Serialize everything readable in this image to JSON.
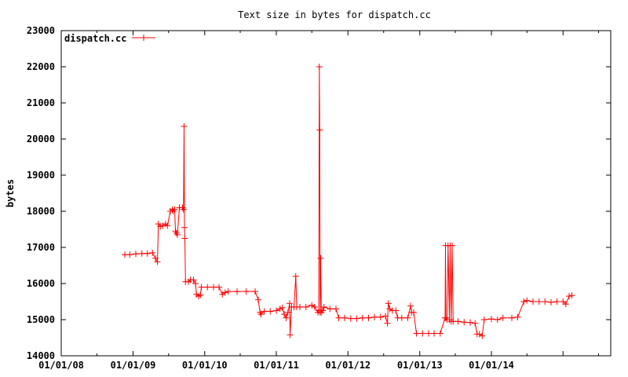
{
  "chart_data": {
    "type": "line",
    "title": "Text size in bytes for dispatch.cc",
    "xlabel": "",
    "ylabel": "bytes",
    "legend": {
      "position": "top-left",
      "entries": [
        "dispatch.cc"
      ]
    },
    "grid": false,
    "xlim": [
      "2008-01-01",
      "2015-09-01"
    ],
    "ylim": [
      14000,
      23000
    ],
    "x_ticks": [
      "01/01/08",
      "01/01/09",
      "01/01/10",
      "01/01/11",
      "01/01/12",
      "01/01/13",
      "01/01/14"
    ],
    "y_ticks": [
      14000,
      15000,
      16000,
      17000,
      18000,
      19000,
      20000,
      21000,
      22000,
      23000
    ],
    "series": [
      {
        "name": "dispatch.cc",
        "color": "#ff0000",
        "marker": "plus",
        "points": [
          [
            "2008-11-20",
            16800
          ],
          [
            "2008-12-15",
            16800
          ],
          [
            "2009-01-15",
            16820
          ],
          [
            "2009-02-15",
            16830
          ],
          [
            "2009-03-15",
            16830
          ],
          [
            "2009-04-10",
            16850
          ],
          [
            "2009-04-25",
            16700
          ],
          [
            "2009-05-05",
            16600
          ],
          [
            "2009-05-10",
            17650
          ],
          [
            "2009-05-20",
            17580
          ],
          [
            "2009-06-01",
            17600
          ],
          [
            "2009-06-15",
            17650
          ],
          [
            "2009-06-25",
            17600
          ],
          [
            "2009-07-10",
            18000
          ],
          [
            "2009-07-20",
            18050
          ],
          [
            "2009-07-25",
            18000
          ],
          [
            "2009-08-01",
            18050
          ],
          [
            "2009-08-05",
            17450
          ],
          [
            "2009-08-10",
            17400
          ],
          [
            "2009-08-15",
            17350
          ],
          [
            "2009-08-25",
            18100
          ],
          [
            "2009-09-10",
            18100
          ],
          [
            "2009-09-15",
            18050
          ],
          [
            "2009-09-18",
            20350
          ],
          [
            "2009-09-20",
            17550
          ],
          [
            "2009-09-22",
            17250
          ],
          [
            "2009-09-25",
            16050
          ],
          [
            "2009-10-10",
            16050
          ],
          [
            "2009-10-20",
            16100
          ],
          [
            "2009-11-05",
            16100
          ],
          [
            "2009-11-15",
            16000
          ],
          [
            "2009-11-20",
            15700
          ],
          [
            "2009-12-01",
            15650
          ],
          [
            "2009-12-10",
            15680
          ],
          [
            "2009-12-15",
            15900
          ],
          [
            "2010-01-15",
            15900
          ],
          [
            "2010-02-15",
            15900
          ],
          [
            "2010-03-15",
            15900
          ],
          [
            "2010-04-01",
            15700
          ],
          [
            "2010-04-15",
            15750
          ],
          [
            "2010-05-01",
            15780
          ],
          [
            "2010-06-15",
            15780
          ],
          [
            "2010-08-01",
            15780
          ],
          [
            "2010-09-15",
            15780
          ],
          [
            "2010-10-01",
            15550
          ],
          [
            "2010-10-10",
            15200
          ],
          [
            "2010-10-15",
            15150
          ],
          [
            "2010-11-01",
            15230
          ],
          [
            "2010-12-01",
            15230
          ],
          [
            "2011-01-01",
            15250
          ],
          [
            "2011-01-20",
            15300
          ],
          [
            "2011-02-01",
            15330
          ],
          [
            "2011-02-10",
            15150
          ],
          [
            "2011-02-20",
            15050
          ],
          [
            "2011-03-01",
            15200
          ],
          [
            "2011-03-10",
            15450
          ],
          [
            "2011-03-12",
            14580
          ],
          [
            "2011-03-20",
            15350
          ],
          [
            "2011-04-01",
            15350
          ],
          [
            "2011-04-10",
            16200
          ],
          [
            "2011-04-15",
            15350
          ],
          [
            "2011-05-01",
            15350
          ],
          [
            "2011-06-01",
            15350
          ],
          [
            "2011-07-01",
            15400
          ],
          [
            "2011-07-15",
            15350
          ],
          [
            "2011-08-01",
            15200
          ],
          [
            "2011-08-05",
            15250
          ],
          [
            "2011-08-08",
            22000
          ],
          [
            "2011-08-10",
            20250
          ],
          [
            "2011-08-12",
            15200
          ],
          [
            "2011-08-15",
            16700
          ],
          [
            "2011-08-18",
            15200
          ],
          [
            "2011-08-25",
            15250
          ],
          [
            "2011-09-01",
            15350
          ],
          [
            "2011-10-01",
            15300
          ],
          [
            "2011-11-01",
            15300
          ],
          [
            "2011-11-15",
            15050
          ],
          [
            "2011-12-15",
            15050
          ],
          [
            "2012-01-15",
            15030
          ],
          [
            "2012-02-15",
            15030
          ],
          [
            "2012-03-15",
            15050
          ],
          [
            "2012-04-15",
            15050
          ],
          [
            "2012-05-15",
            15070
          ],
          [
            "2012-06-15",
            15070
          ],
          [
            "2012-07-10",
            15100
          ],
          [
            "2012-07-20",
            14900
          ],
          [
            "2012-07-25",
            15450
          ],
          [
            "2012-08-01",
            15300
          ],
          [
            "2012-08-15",
            15250
          ],
          [
            "2012-09-01",
            15250
          ],
          [
            "2012-09-10",
            15050
          ],
          [
            "2012-10-01",
            15050
          ],
          [
            "2012-11-01",
            15050
          ],
          [
            "2012-11-15",
            15380
          ],
          [
            "2012-11-20",
            15200
          ],
          [
            "2012-12-01",
            15200
          ],
          [
            "2012-12-15",
            14620
          ],
          [
            "2013-01-15",
            14620
          ],
          [
            "2013-02-15",
            14620
          ],
          [
            "2013-03-15",
            14620
          ],
          [
            "2013-04-15",
            14620
          ],
          [
            "2013-05-10",
            15050
          ],
          [
            "2013-05-12",
            17050
          ],
          [
            "2013-05-14",
            15050
          ],
          [
            "2013-05-20",
            15000
          ],
          [
            "2013-05-25",
            17050
          ],
          [
            "2013-06-01",
            15000
          ],
          [
            "2013-06-05",
            17050
          ],
          [
            "2013-06-10",
            14950
          ],
          [
            "2013-06-15",
            17050
          ],
          [
            "2013-06-20",
            14950
          ],
          [
            "2013-07-15",
            14950
          ],
          [
            "2013-08-15",
            14930
          ],
          [
            "2013-09-15",
            14920
          ],
          [
            "2013-10-10",
            14900
          ],
          [
            "2013-10-20",
            14600
          ],
          [
            "2013-11-01",
            14600
          ],
          [
            "2013-11-15",
            14550
          ],
          [
            "2013-11-25",
            15000
          ],
          [
            "2014-01-01",
            15020
          ],
          [
            "2014-02-01",
            15000
          ],
          [
            "2014-03-01",
            15050
          ],
          [
            "2014-04-15",
            15050
          ],
          [
            "2014-05-15",
            15070
          ],
          [
            "2014-06-15",
            15500
          ],
          [
            "2014-07-01",
            15530
          ],
          [
            "2014-08-01",
            15500
          ],
          [
            "2014-09-01",
            15500
          ],
          [
            "2014-10-01",
            15500
          ],
          [
            "2014-11-01",
            15480
          ],
          [
            "2014-12-01",
            15500
          ],
          [
            "2015-01-01",
            15500
          ],
          [
            "2015-01-15",
            15430
          ],
          [
            "2015-02-01",
            15650
          ],
          [
            "2015-02-15",
            15670
          ]
        ]
      }
    ]
  }
}
